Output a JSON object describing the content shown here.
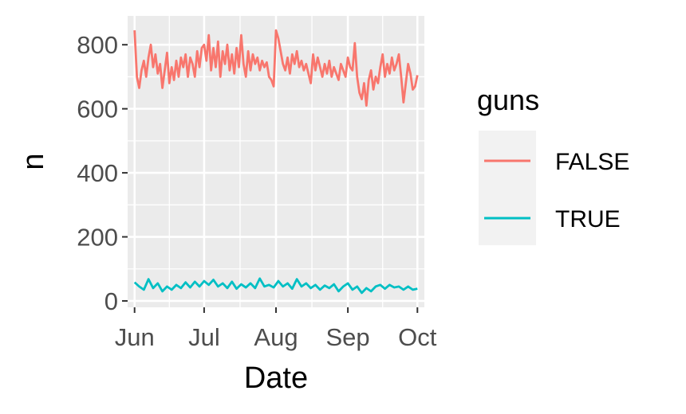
{
  "chart_data": {
    "type": "line",
    "xlabel": "Date",
    "ylabel": "n",
    "x_ticks": [
      {
        "label": "Jun",
        "date": "2020-06-01"
      },
      {
        "label": "Jul",
        "date": "2020-07-01"
      },
      {
        "label": "Aug",
        "date": "2020-08-01"
      },
      {
        "label": "Sep",
        "date": "2020-09-01"
      },
      {
        "label": "Oct",
        "date": "2020-10-01"
      }
    ],
    "xlim": [
      "2020-05-29",
      "2020-10-04"
    ],
    "y_ticks": [
      0,
      200,
      400,
      600,
      800
    ],
    "ylim": [
      -20,
      890
    ],
    "grid": true,
    "legend": {
      "title": "guns",
      "position": "right"
    },
    "series": [
      {
        "name": "FALSE",
        "color": "#F8766D",
        "points": [
          [
            "2020-06-01",
            845
          ],
          [
            "2020-06-02",
            700
          ],
          [
            "2020-06-03",
            665
          ],
          [
            "2020-06-04",
            720
          ],
          [
            "2020-06-05",
            750
          ],
          [
            "2020-06-06",
            700
          ],
          [
            "2020-06-07",
            760
          ],
          [
            "2020-06-08",
            800
          ],
          [
            "2020-06-09",
            730
          ],
          [
            "2020-06-10",
            770
          ],
          [
            "2020-06-11",
            710
          ],
          [
            "2020-06-12",
            740
          ],
          [
            "2020-06-13",
            665
          ],
          [
            "2020-06-14",
            720
          ],
          [
            "2020-06-15",
            775
          ],
          [
            "2020-06-16",
            680
          ],
          [
            "2020-06-17",
            730
          ],
          [
            "2020-06-18",
            690
          ],
          [
            "2020-06-19",
            750
          ],
          [
            "2020-06-20",
            700
          ],
          [
            "2020-06-21",
            760
          ],
          [
            "2020-06-22",
            730
          ],
          [
            "2020-06-23",
            770
          ],
          [
            "2020-06-24",
            700
          ],
          [
            "2020-06-25",
            760
          ],
          [
            "2020-06-26",
            740
          ],
          [
            "2020-06-27",
            700
          ],
          [
            "2020-06-28",
            780
          ],
          [
            "2020-06-29",
            730
          ],
          [
            "2020-06-30",
            790
          ],
          [
            "2020-07-01",
            800
          ],
          [
            "2020-07-02",
            750
          ],
          [
            "2020-07-03",
            830
          ],
          [
            "2020-07-04",
            720
          ],
          [
            "2020-07-05",
            790
          ],
          [
            "2020-07-06",
            730
          ],
          [
            "2020-07-07",
            810
          ],
          [
            "2020-07-08",
            700
          ],
          [
            "2020-07-09",
            780
          ],
          [
            "2020-07-10",
            740
          ],
          [
            "2020-07-11",
            800
          ],
          [
            "2020-07-12",
            720
          ],
          [
            "2020-07-13",
            770
          ],
          [
            "2020-07-14",
            710
          ],
          [
            "2020-07-15",
            790
          ],
          [
            "2020-07-16",
            730
          ],
          [
            "2020-07-17",
            830
          ],
          [
            "2020-07-18",
            740
          ],
          [
            "2020-07-19",
            700
          ],
          [
            "2020-07-20",
            780
          ],
          [
            "2020-07-21",
            720
          ],
          [
            "2020-07-22",
            770
          ],
          [
            "2020-07-23",
            740
          ],
          [
            "2020-07-24",
            760
          ],
          [
            "2020-07-25",
            720
          ],
          [
            "2020-07-26",
            750
          ],
          [
            "2020-07-27",
            730
          ],
          [
            "2020-07-28",
            745
          ],
          [
            "2020-07-29",
            700
          ],
          [
            "2020-07-30",
            690
          ],
          [
            "2020-07-31",
            670
          ],
          [
            "2020-08-01",
            845
          ],
          [
            "2020-08-02",
            820
          ],
          [
            "2020-08-03",
            780
          ],
          [
            "2020-08-04",
            740
          ],
          [
            "2020-08-05",
            720
          ],
          [
            "2020-08-06",
            760
          ],
          [
            "2020-08-07",
            710
          ],
          [
            "2020-08-08",
            770
          ],
          [
            "2020-08-09",
            740
          ],
          [
            "2020-08-10",
            780
          ],
          [
            "2020-08-11",
            730
          ],
          [
            "2020-08-12",
            750
          ],
          [
            "2020-08-13",
            720
          ],
          [
            "2020-08-14",
            740
          ],
          [
            "2020-08-15",
            710
          ],
          [
            "2020-08-16",
            680
          ],
          [
            "2020-08-17",
            770
          ],
          [
            "2020-08-18",
            720
          ],
          [
            "2020-08-19",
            760
          ],
          [
            "2020-08-20",
            730
          ],
          [
            "2020-08-21",
            700
          ],
          [
            "2020-08-22",
            740
          ],
          [
            "2020-08-23",
            710
          ],
          [
            "2020-08-24",
            750
          ],
          [
            "2020-08-25",
            700
          ],
          [
            "2020-08-26",
            730
          ],
          [
            "2020-08-27",
            710
          ],
          [
            "2020-08-28",
            690
          ],
          [
            "2020-08-29",
            740
          ],
          [
            "2020-08-30",
            720
          ],
          [
            "2020-08-31",
            700
          ],
          [
            "2020-09-01",
            760
          ],
          [
            "2020-09-02",
            730
          ],
          [
            "2020-09-03",
            720
          ],
          [
            "2020-09-04",
            805
          ],
          [
            "2020-09-05",
            700
          ],
          [
            "2020-09-06",
            650
          ],
          [
            "2020-09-07",
            630
          ],
          [
            "2020-09-08",
            680
          ],
          [
            "2020-09-09",
            610
          ],
          [
            "2020-09-10",
            690
          ],
          [
            "2020-09-11",
            720
          ],
          [
            "2020-09-12",
            660
          ],
          [
            "2020-09-13",
            700
          ],
          [
            "2020-09-14",
            680
          ],
          [
            "2020-09-15",
            730
          ],
          [
            "2020-09-16",
            770
          ],
          [
            "2020-09-17",
            700
          ],
          [
            "2020-09-18",
            740
          ],
          [
            "2020-09-19",
            710
          ],
          [
            "2020-09-20",
            760
          ],
          [
            "2020-09-21",
            720
          ],
          [
            "2020-09-22",
            740
          ],
          [
            "2020-09-23",
            770
          ],
          [
            "2020-09-24",
            700
          ],
          [
            "2020-09-25",
            620
          ],
          [
            "2020-09-26",
            680
          ],
          [
            "2020-09-27",
            740
          ],
          [
            "2020-09-28",
            710
          ],
          [
            "2020-09-29",
            660
          ],
          [
            "2020-09-30",
            670
          ],
          [
            "2020-10-01",
            705
          ]
        ]
      },
      {
        "name": "TRUE",
        "color": "#00BFC4",
        "points": [
          [
            "2020-06-01",
            58
          ],
          [
            "2020-06-03",
            45
          ],
          [
            "2020-06-05",
            35
          ],
          [
            "2020-06-07",
            68
          ],
          [
            "2020-06-09",
            40
          ],
          [
            "2020-06-11",
            55
          ],
          [
            "2020-06-13",
            30
          ],
          [
            "2020-06-15",
            45
          ],
          [
            "2020-06-17",
            35
          ],
          [
            "2020-06-19",
            50
          ],
          [
            "2020-06-21",
            40
          ],
          [
            "2020-06-23",
            58
          ],
          [
            "2020-06-25",
            42
          ],
          [
            "2020-06-27",
            60
          ],
          [
            "2020-06-29",
            45
          ],
          [
            "2020-07-01",
            62
          ],
          [
            "2020-07-03",
            50
          ],
          [
            "2020-07-05",
            66
          ],
          [
            "2020-07-07",
            45
          ],
          [
            "2020-07-09",
            55
          ],
          [
            "2020-07-11",
            40
          ],
          [
            "2020-07-13",
            60
          ],
          [
            "2020-07-15",
            38
          ],
          [
            "2020-07-17",
            52
          ],
          [
            "2020-07-19",
            42
          ],
          [
            "2020-07-21",
            55
          ],
          [
            "2020-07-23",
            40
          ],
          [
            "2020-07-25",
            70
          ],
          [
            "2020-07-27",
            45
          ],
          [
            "2020-07-29",
            50
          ],
          [
            "2020-07-31",
            42
          ],
          [
            "2020-08-02",
            62
          ],
          [
            "2020-08-04",
            45
          ],
          [
            "2020-08-06",
            55
          ],
          [
            "2020-08-08",
            38
          ],
          [
            "2020-08-10",
            68
          ],
          [
            "2020-08-12",
            45
          ],
          [
            "2020-08-14",
            55
          ],
          [
            "2020-08-16",
            40
          ],
          [
            "2020-08-18",
            50
          ],
          [
            "2020-08-20",
            35
          ],
          [
            "2020-08-22",
            48
          ],
          [
            "2020-08-24",
            40
          ],
          [
            "2020-08-26",
            52
          ],
          [
            "2020-08-28",
            30
          ],
          [
            "2020-08-30",
            45
          ],
          [
            "2020-09-01",
            55
          ],
          [
            "2020-09-03",
            35
          ],
          [
            "2020-09-05",
            45
          ],
          [
            "2020-09-07",
            25
          ],
          [
            "2020-09-09",
            40
          ],
          [
            "2020-09-11",
            30
          ],
          [
            "2020-09-13",
            45
          ],
          [
            "2020-09-15",
            50
          ],
          [
            "2020-09-17",
            38
          ],
          [
            "2020-09-19",
            50
          ],
          [
            "2020-09-21",
            42
          ],
          [
            "2020-09-23",
            45
          ],
          [
            "2020-09-25",
            35
          ],
          [
            "2020-09-27",
            45
          ],
          [
            "2020-09-29",
            35
          ],
          [
            "2020-10-01",
            38
          ]
        ]
      }
    ]
  }
}
